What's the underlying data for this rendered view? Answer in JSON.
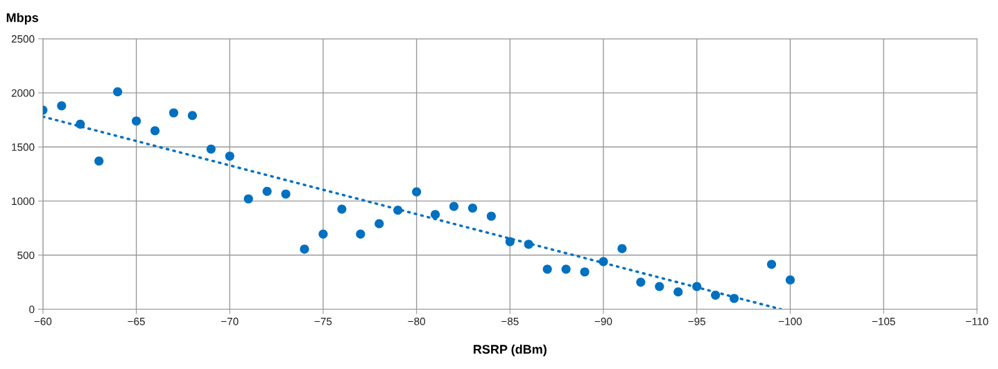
{
  "chart_data": {
    "type": "scatter",
    "ylabel": "Mbps",
    "xlabel": "RSRP (dBm)",
    "xlim": [
      -60,
      -110
    ],
    "xticks": [
      -60,
      -65,
      -70,
      -75,
      -80,
      -85,
      -90,
      -95,
      -100,
      -105,
      -110
    ],
    "ylim": [
      0,
      2500
    ],
    "yticks": [
      0,
      500,
      1000,
      1500,
      2000,
      2500
    ],
    "grid": true,
    "marker": "circle",
    "series": [
      {
        "color": "#0070c0",
        "x": [
          -60,
          -61,
          -62,
          -63,
          -64,
          -65,
          -66,
          -67,
          -68,
          -69,
          -70,
          -71,
          -72,
          -73,
          -74,
          -75,
          -76,
          -77,
          -78,
          -79,
          -80,
          -81,
          -82,
          -83,
          -84,
          -85,
          -86,
          -87,
          -88,
          -89,
          -90,
          -91,
          -92,
          -93,
          -94,
          -95,
          -96,
          -97,
          -99,
          -100
        ],
        "values": [
          1840,
          1880,
          1710,
          1370,
          2010,
          1740,
          1650,
          1815,
          1790,
          1480,
          1415,
          1020,
          1090,
          1065,
          555,
          695,
          925,
          695,
          790,
          915,
          1085,
          875,
          950,
          935,
          860,
          625,
          600,
          370,
          370,
          345,
          440,
          560,
          250,
          210,
          160,
          210,
          130,
          100,
          415,
          270
        ]
      },
      {
        "type": "line",
        "color": "#0070c0",
        "line_style": "dotted",
        "marker": "none",
        "x": [
          -60,
          -99.5
        ],
        "values": [
          1780,
          0
        ]
      }
    ]
  }
}
